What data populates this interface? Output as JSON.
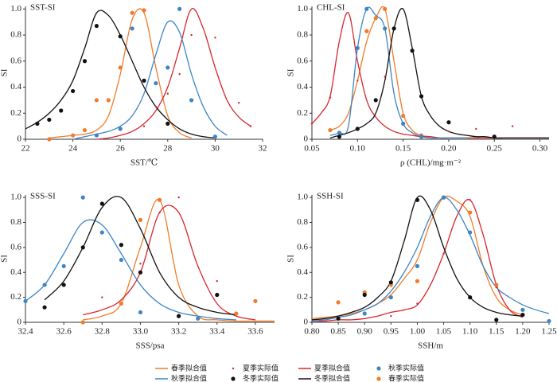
{
  "chart_data": [
    {
      "type": "line",
      "title": "SST-SI",
      "xlabel": "SST/℃",
      "ylabel": "SI",
      "xlim": [
        22,
        32
      ],
      "xticks": [
        22,
        24,
        26,
        28,
        30,
        32
      ],
      "ylim": [
        0,
        1.02
      ],
      "yticks": [
        0,
        0.2,
        0.4,
        0.6,
        0.8,
        {
          "value": 1,
          "label": "1.0"
        }
      ],
      "x": [
        22,
        22.5,
        23,
        23.5,
        24,
        24.5,
        25,
        25.5,
        26,
        26.5,
        27,
        27.5,
        28,
        28.5,
        29,
        29.5,
        30,
        30.5,
        31,
        31.5
      ],
      "series": [
        {
          "style": "line",
          "color": "#f07c2a",
          "values": [
            null,
            null,
            0.01,
            0.02,
            0.03,
            0.04,
            0.07,
            0.18,
            0.5,
            0.92,
            0.97,
            0.55,
            0.18,
            0.05,
            0.01,
            null,
            null,
            null,
            null,
            null
          ]
        },
        {
          "style": "line",
          "color": "#d9262c",
          "values": [
            null,
            null,
            null,
            null,
            null,
            null,
            0.0,
            0.01,
            0.03,
            0.06,
            0.12,
            0.22,
            0.4,
            0.7,
            1.0,
            0.85,
            0.55,
            0.3,
            0.17,
            0.1
          ]
        },
        {
          "style": "line",
          "color": "#3d85c6",
          "values": [
            null,
            null,
            null,
            null,
            0.0,
            0.02,
            0.04,
            0.06,
            0.1,
            0.18,
            0.35,
            0.65,
            0.9,
            0.82,
            0.5,
            0.25,
            0.1,
            0.03,
            null,
            null
          ]
        },
        {
          "style": "line",
          "color": "#111111",
          "values": [
            0.08,
            0.13,
            0.2,
            0.3,
            0.45,
            0.7,
            0.97,
            0.95,
            0.8,
            0.6,
            0.4,
            0.25,
            0.15,
            0.08,
            0.04,
            0.02,
            0.01,
            null,
            null,
            null
          ]
        },
        {
          "style": "points",
          "color": "#f07c2a",
          "x": [
            23,
            24,
            24.5,
            25,
            25.5,
            26,
            26.5,
            27
          ],
          "values": [
            0,
            0.03,
            0.07,
            0.3,
            0.3,
            0.55,
            0.97,
            0.99
          ]
        },
        {
          "style": "points",
          "color": "#d9262c",
          "size": "small",
          "x": [
            27,
            27.5,
            28,
            28.5,
            29,
            30,
            31,
            31.5
          ],
          "values": [
            0.1,
            0.25,
            0.35,
            0.5,
            0.8,
            0.78,
            0.28,
            0.1
          ]
        },
        {
          "style": "points",
          "color": "#3d85c6",
          "x": [
            25,
            26,
            26.5,
            27.5,
            28,
            28.5,
            29,
            30
          ],
          "values": [
            0.03,
            0.08,
            0.85,
            0.43,
            0.55,
            1.0,
            0.3,
            0.02
          ]
        },
        {
          "style": "points",
          "color": "#111111",
          "x": [
            22.5,
            23,
            23.5,
            24,
            24.5,
            25,
            26,
            27,
            28
          ],
          "values": [
            0.12,
            0.15,
            0.22,
            0.37,
            0.6,
            0.87,
            0.79,
            0.45,
            0.12
          ]
        }
      ]
    },
    {
      "type": "line",
      "title": "CHL-SI",
      "xlabel": "ρ (CHL)/mg·m⁻²",
      "ylabel": "SI",
      "xlim": [
        0.05,
        0.31
      ],
      "xticks": [
        0.05,
        {
          "value": 0.1,
          "label": "0.10"
        },
        0.15,
        {
          "value": 0.2,
          "label": "0.20"
        },
        0.25,
        {
          "value": 0.3,
          "label": "0.30"
        }
      ],
      "ylim": [
        0,
        1.02
      ],
      "yticks": [
        0,
        0.2,
        0.4,
        0.6,
        0.8,
        {
          "value": 1,
          "label": "1.0"
        }
      ],
      "x": [
        0.05,
        0.06,
        0.07,
        0.08,
        0.09,
        0.1,
        0.11,
        0.12,
        0.13,
        0.14,
        0.15,
        0.16,
        0.17,
        0.18,
        0.19,
        0.2,
        0.21,
        0.22,
        0.23,
        0.24,
        0.25,
        0.26,
        0.27,
        0.28,
        0.29,
        0.3,
        0.31
      ],
      "series": [
        {
          "style": "line",
          "color": "#f07c2a",
          "values": [
            null,
            null,
            0.07,
            0.1,
            0.2,
            0.45,
            0.75,
            0.93,
            1.0,
            0.6,
            0.2,
            0.07,
            0.03,
            0.02,
            0.01,
            0.01,
            0.01,
            0.01,
            0.01,
            0.01,
            0.01,
            0.01,
            0.01,
            0.01,
            0.01,
            0.01,
            0.01
          ]
        },
        {
          "style": "line",
          "color": "#d9262c",
          "values": [
            0.12,
            0.2,
            0.33,
            0.75,
            0.97,
            0.6,
            0.3,
            0.17,
            0.1,
            0.06,
            0.04,
            0.03,
            0.02,
            0.02,
            0.01,
            0.01,
            0.01,
            0.01,
            0.01,
            0.01,
            0.01,
            0.01,
            0.01,
            0.01,
            0.01,
            0.01,
            0.01
          ]
        },
        {
          "style": "line",
          "color": "#3d85c6",
          "values": [
            null,
            null,
            0.03,
            0.05,
            0.1,
            0.7,
            1.0,
            0.95,
            0.85,
            0.35,
            0.12,
            0.05,
            0.02,
            0.01,
            0.01,
            0.01,
            0.01,
            0.01,
            null,
            null,
            null,
            null,
            null,
            null,
            null,
            null,
            null
          ]
        },
        {
          "style": "line",
          "color": "#111111",
          "values": [
            null,
            null,
            0.01,
            0.03,
            0.05,
            0.08,
            0.12,
            0.2,
            0.45,
            0.85,
            1.0,
            0.7,
            0.33,
            0.18,
            0.1,
            0.06,
            0.04,
            0.03,
            0.02,
            0.02,
            0.01,
            0.01,
            0.01,
            0.01,
            0.01,
            0.01,
            0.01
          ]
        },
        {
          "style": "points",
          "color": "#f07c2a",
          "x": [
            0.07,
            0.11,
            0.12,
            0.13,
            0.15,
            0.17
          ],
          "values": [
            0.07,
            0.83,
            0.93,
            1.0,
            0.18,
            0.03
          ]
        },
        {
          "style": "points",
          "color": "#d9262c",
          "size": "small",
          "x": [
            0.05,
            0.07,
            0.1,
            0.13,
            0.2,
            0.23,
            0.27
          ],
          "values": [
            0.12,
            0.32,
            0.45,
            0.48,
            0.06,
            0.08,
            0.1
          ]
        },
        {
          "style": "points",
          "color": "#3d85c6",
          "x": [
            0.08,
            0.1,
            0.11,
            0.13,
            0.15,
            0.17
          ],
          "values": [
            0.05,
            0.7,
            1.0,
            0.85,
            0.12,
            0.02
          ]
        },
        {
          "style": "points",
          "color": "#111111",
          "x": [
            0.08,
            0.1,
            0.12,
            0.14,
            0.16,
            0.17,
            0.2,
            0.25
          ],
          "values": [
            0.02,
            0.08,
            0.3,
            0.85,
            0.68,
            0.33,
            0.13,
            0.02
          ]
        }
      ]
    },
    {
      "type": "line",
      "title": "SSS-SI",
      "xlabel": "SSS/psa",
      "ylabel": "SI",
      "xlim": [
        32.4,
        33.7
      ],
      "xticks": [
        32.4,
        32.6,
        32.8,
        {
          "value": 33,
          "label": "33.0"
        },
        33.2,
        33.4,
        33.6
      ],
      "ylim": [
        0,
        1.02
      ],
      "yticks": [
        0,
        0.2,
        0.4,
        0.6,
        0.8,
        {
          "value": 1,
          "label": "1.0"
        }
      ],
      "x": [
        32.4,
        32.5,
        32.6,
        32.7,
        32.8,
        32.9,
        33.0,
        33.1,
        33.2,
        33.3,
        33.4,
        33.5,
        33.6,
        33.7
      ],
      "series": [
        {
          "style": "line",
          "color": "#f07c2a",
          "values": [
            null,
            null,
            null,
            0.02,
            0.05,
            0.15,
            0.6,
            0.98,
            0.3,
            0.05,
            0.02,
            0.01,
            0.01,
            0.01
          ]
        },
        {
          "style": "line",
          "color": "#d9262c",
          "values": [
            null,
            null,
            null,
            0.06,
            0.1,
            0.18,
            0.4,
            0.88,
            0.88,
            0.45,
            0.15,
            0.05,
            0.02,
            null
          ]
        },
        {
          "style": "line",
          "color": "#3d85c6",
          "values": [
            0.17,
            0.3,
            0.55,
            0.8,
            0.78,
            0.55,
            0.3,
            0.15,
            0.08,
            0.05,
            0.03,
            0.02,
            null,
            null
          ]
        },
        {
          "style": "line",
          "color": "#111111",
          "values": [
            null,
            0.18,
            0.33,
            0.6,
            0.92,
            1.0,
            0.75,
            0.4,
            0.2,
            0.12,
            0.08,
            0.06,
            null,
            null
          ]
        },
        {
          "style": "points",
          "color": "#f07c2a",
          "x": [
            32.7,
            32.9,
            33.0,
            33.1,
            33.2,
            33.5,
            33.6
          ],
          "values": [
            0.0,
            0.15,
            0.82,
            0.98,
            0.05,
            0.07,
            0.17
          ]
        },
        {
          "style": "points",
          "color": "#d9262c",
          "size": "small",
          "x": [
            32.8,
            33.0,
            33.1,
            33.2,
            33.4
          ],
          "values": [
            0.2,
            0.47,
            0.88,
            1.0,
            0.33
          ]
        },
        {
          "style": "points",
          "color": "#3d85c6",
          "x": [
            32.4,
            32.5,
            32.6,
            32.7,
            32.8,
            32.9,
            33.0,
            33.3
          ],
          "values": [
            0.17,
            0.3,
            0.45,
            1.0,
            0.72,
            0.5,
            0.08,
            0.03
          ]
        },
        {
          "style": "points",
          "color": "#111111",
          "x": [
            32.5,
            32.6,
            32.7,
            32.8,
            32.9,
            33.0,
            33.2,
            33.4
          ],
          "values": [
            0.12,
            0.3,
            0.6,
            0.95,
            0.62,
            0.4,
            0.05,
            0.22
          ]
        }
      ]
    },
    {
      "type": "line",
      "title": "SSH-SI",
      "xlabel": "SSH/m",
      "ylabel": "SI",
      "xlim": [
        0.8,
        1.25
      ],
      "xticks": [
        {
          "value": 0.8,
          "label": "0.80"
        },
        0.85,
        {
          "value": 0.9,
          "label": "0.90"
        },
        0.95,
        {
          "value": 1,
          "label": "1.00"
        },
        1.05,
        {
          "value": 1.1,
          "label": "1.10"
        },
        1.15,
        {
          "value": 1.2,
          "label": "1.20"
        },
        1.25
      ],
      "ylim": [
        0,
        1.02
      ],
      "yticks": [
        0,
        0.2,
        0.4,
        0.6,
        0.8,
        {
          "value": 1,
          "label": "1.0"
        }
      ],
      "x": [
        0.8,
        0.825,
        0.85,
        0.875,
        0.9,
        0.925,
        0.95,
        0.975,
        1.0,
        1.025,
        1.05,
        1.075,
        1.1,
        1.125,
        1.15,
        1.175,
        1.2,
        1.225,
        1.25
      ],
      "series": [
        {
          "style": "line",
          "color": "#f07c2a",
          "values": [
            0.03,
            0.04,
            0.05,
            0.07,
            0.1,
            0.15,
            0.22,
            0.35,
            0.5,
            0.8,
            1.0,
            0.97,
            0.85,
            0.45,
            0.2,
            0.1,
            0.06,
            null,
            null
          ]
        },
        {
          "style": "line",
          "color": "#d9262c",
          "values": [
            0.01,
            0.01,
            0.02,
            0.02,
            0.03,
            0.05,
            0.08,
            0.1,
            0.14,
            0.3,
            0.55,
            0.85,
            0.98,
            0.7,
            0.3,
            0.1,
            0.04,
            null,
            null
          ]
        },
        {
          "style": "line",
          "color": "#3d85c6",
          "values": [
            0.01,
            0.02,
            0.04,
            0.06,
            0.1,
            0.15,
            0.25,
            0.4,
            0.6,
            0.85,
            1.0,
            0.9,
            0.7,
            0.45,
            0.28,
            0.2,
            0.14,
            0.1,
            0.07
          ]
        },
        {
          "style": "line",
          "color": "#111111",
          "values": [
            0.02,
            0.03,
            0.05,
            0.08,
            0.12,
            0.2,
            0.33,
            0.65,
            1.0,
            0.9,
            0.6,
            0.35,
            0.2,
            0.12,
            0.08,
            0.06,
            0.05,
            null,
            null
          ]
        },
        {
          "style": "points",
          "color": "#f07c2a",
          "x": [
            0.85,
            0.9,
            0.95,
            1.0,
            1.05,
            1.1,
            1.15
          ],
          "values": [
            0.16,
            0.24,
            0.3,
            0.33,
            1.0,
            0.88,
            0.3
          ]
        },
        {
          "style": "points",
          "color": "#d9262c",
          "size": "small",
          "x": [
            0.95,
            1.0,
            1.05,
            1.1,
            1.15
          ],
          "values": [
            0.05,
            0.15,
            0.55,
            0.98,
            0.28
          ]
        },
        {
          "style": "points",
          "color": "#3d85c6",
          "x": [
            0.9,
            0.95,
            1.0,
            1.05,
            1.1,
            1.2,
            1.25
          ],
          "values": [
            0.07,
            0.2,
            0.45,
            1.0,
            0.72,
            0.1,
            0.01
          ]
        },
        {
          "style": "points",
          "color": "#111111",
          "x": [
            0.85,
            0.9,
            0.95,
            1.0,
            1.1,
            1.15,
            1.2
          ],
          "values": [
            0.03,
            0.22,
            0.32,
            0.98,
            0.2,
            0.02,
            0.06
          ]
        }
      ]
    }
  ],
  "legend": [
    {
      "name": "春季拟合值",
      "color": "#f07c2a",
      "style": "line"
    },
    {
      "name": "夏季实际值",
      "color": "#d9262c",
      "style": "points",
      "size": "small"
    },
    {
      "name": "夏季拟合值",
      "color": "#d9262c",
      "style": "line"
    },
    {
      "name": "秋季实际值",
      "color": "#3d85c6",
      "style": "points"
    },
    {
      "name": "秋季拟合值",
      "color": "#3d85c6",
      "style": "line"
    },
    {
      "name": "冬季实际值",
      "color": "#111111",
      "style": "points"
    },
    {
      "name": "冬季拟合值",
      "color": "#111111",
      "style": "line"
    },
    {
      "name": "春季实际值",
      "color": "#f07c2a",
      "style": "points"
    }
  ]
}
